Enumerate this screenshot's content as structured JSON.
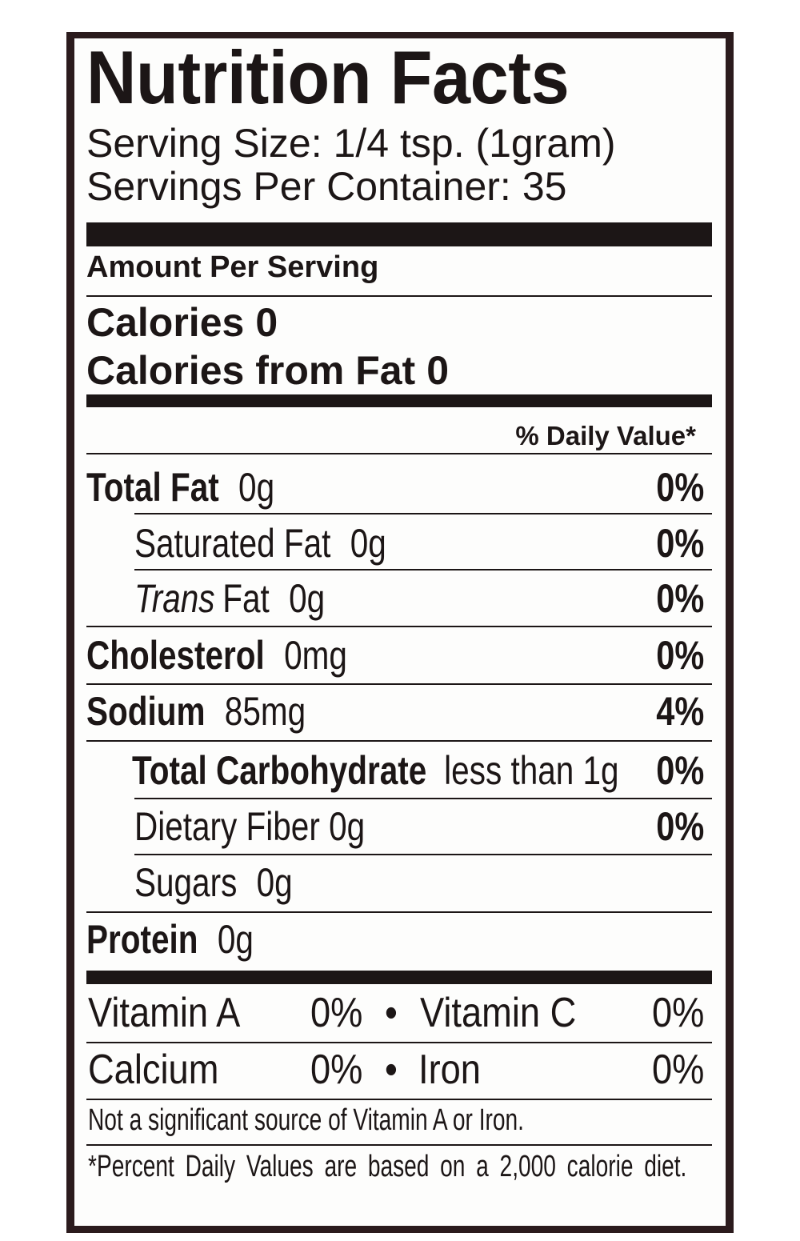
{
  "colors": {
    "ink": "#1c1616",
    "frame": "#2b1b1d",
    "paper": "#fdfdfc"
  },
  "label": {
    "title": "Nutrition Facts",
    "serving_size": {
      "label": "Serving Size:",
      "value": "1/4 tsp. (1gram)"
    },
    "servings_per_container": {
      "label": "Servings Per Container:",
      "value": "35"
    },
    "amount_per_serving": "Amount Per Serving",
    "calories": {
      "label": "Calories",
      "value": "0"
    },
    "calories_from_fat": {
      "label": "Calories from Fat",
      "value": "0"
    },
    "daily_value_header": "% Daily Value*",
    "nutrients": [
      {
        "name": "Total Fat",
        "amount": "0g",
        "dv": "0%"
      },
      {
        "name": "Saturated Fat",
        "amount": "0g",
        "dv": "0%"
      },
      {
        "name_italic": "Trans",
        "name": "Fat",
        "amount": "0g",
        "dv": "0%"
      },
      {
        "name": "Cholesterol",
        "amount": "0mg",
        "dv": "0%"
      },
      {
        "name": "Sodium",
        "amount": "85mg",
        "dv": "4%"
      },
      {
        "name": "Total Carbohydrate",
        "amount": "less than 1g",
        "dv": "0%"
      },
      {
        "name": "Dietary Fiber",
        "amount": "0g",
        "dv": "0%"
      },
      {
        "name": "Sugars",
        "amount": "0g"
      },
      {
        "name": "Protein",
        "amount": "0g"
      }
    ],
    "vitamins": [
      {
        "name": "Vitamin A",
        "dv": "0%"
      },
      {
        "name": "Vitamin C",
        "dv": "0%"
      },
      {
        "name": "Calcium",
        "dv": "0%"
      },
      {
        "name": "Iron",
        "dv": "0%"
      }
    ],
    "separator": "•",
    "footnotes": [
      "Not a significant source of Vitamin A or Iron.",
      "*Percent Daily Values are based on a 2,000 calorie diet."
    ]
  }
}
